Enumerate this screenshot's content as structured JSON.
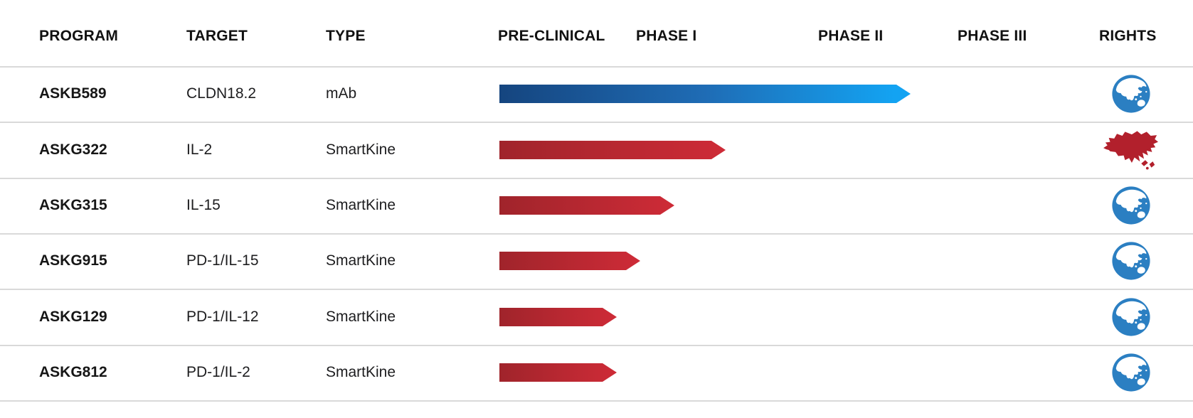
{
  "table": {
    "headers": [
      "PROGRAM",
      "TARGET",
      "TYPE",
      "PRE-CLINICAL",
      "PHASE I",
      "PHASE II",
      "PHASE III",
      "RIGHTS"
    ]
  },
  "chart_data": {
    "type": "bar",
    "subtype": "clinical-pipeline-gantt",
    "phase_columns": [
      "PRE-CLINICAL",
      "PHASE I",
      "PHASE II",
      "PHASE III"
    ],
    "rows": [
      {
        "program": "ASKB589",
        "target": "CLDN18.2",
        "type": "mAb",
        "bar_color": "blue",
        "bar_start_fraction": 0.062,
        "bar_end_fraction": 0.839,
        "stage_reached": "Phase II",
        "rights": "global",
        "rights_icon": "globe-icon"
      },
      {
        "program": "ASKG322",
        "target": "IL-2",
        "type": "SmartKine",
        "bar_color": "red",
        "bar_start_fraction": 0.062,
        "bar_end_fraction": 0.489,
        "stage_reached": "Phase I",
        "rights": "asia",
        "rights_icon": "asia-map-icon"
      },
      {
        "program": "ASKG315",
        "target": "IL-15",
        "type": "SmartKine",
        "bar_color": "red",
        "bar_start_fraction": 0.062,
        "bar_end_fraction": 0.392,
        "stage_reached": "Phase I",
        "rights": "global",
        "rights_icon": "globe-icon"
      },
      {
        "program": "ASKG915",
        "target": "PD-1/IL-15",
        "type": "SmartKine",
        "bar_color": "red",
        "bar_start_fraction": 0.062,
        "bar_end_fraction": 0.328,
        "stage_reached": "Phase I",
        "rights": "global",
        "rights_icon": "globe-icon"
      },
      {
        "program": "ASKG129",
        "target": "PD-1/IL-12",
        "type": "SmartKine",
        "bar_color": "red",
        "bar_start_fraction": 0.062,
        "bar_end_fraction": 0.284,
        "stage_reached": "Phase I",
        "rights": "global",
        "rights_icon": "globe-icon"
      },
      {
        "program": "ASKG812",
        "target": "PD-1/IL-2",
        "type": "SmartKine",
        "bar_color": "red",
        "bar_start_fraction": 0.062,
        "bar_end_fraction": 0.284,
        "stage_reached": "Phase I",
        "rights": "global",
        "rights_icon": "globe-icon"
      }
    ]
  },
  "colors": {
    "bar_blue_start": "#15457f",
    "bar_blue_mid": "#1f6cb5",
    "bar_blue_end": "#13a3f2",
    "bar_red_start": "#a0242b",
    "bar_red_end": "#ce2b37",
    "globe_blue": "#2b7fc2",
    "asia_red": "#b2202c",
    "gridline": "#d9d9d9"
  }
}
